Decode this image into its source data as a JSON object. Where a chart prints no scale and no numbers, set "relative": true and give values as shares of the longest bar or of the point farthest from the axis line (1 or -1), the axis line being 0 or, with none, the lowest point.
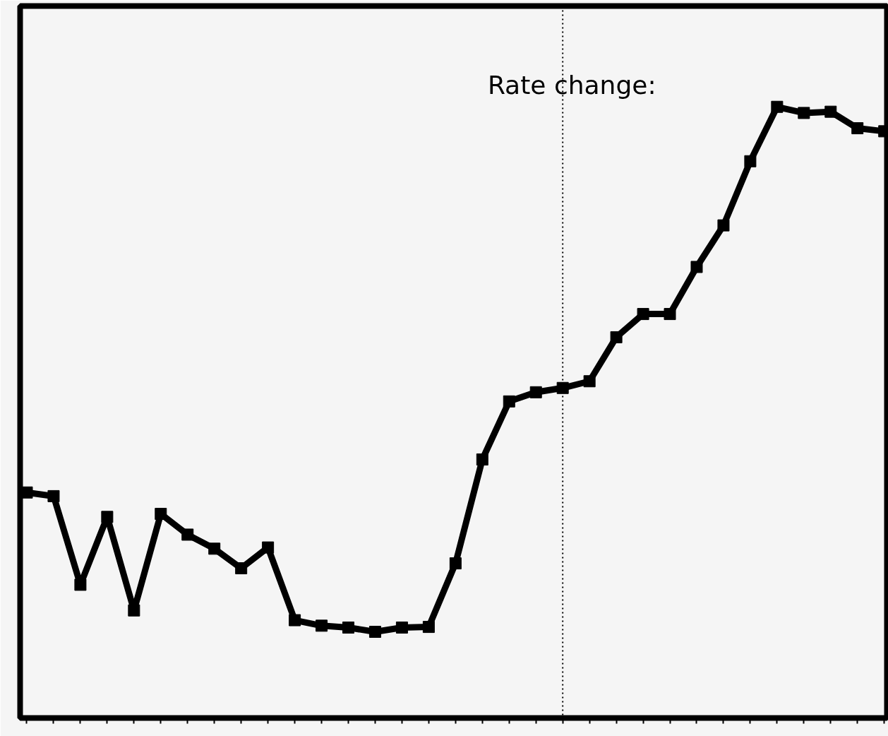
{
  "chart_data": {
    "type": "line",
    "relative": true,
    "categories": [
      null,
      null,
      null,
      null,
      null,
      null,
      null,
      null,
      null,
      null,
      null,
      null,
      null,
      null,
      null,
      null,
      null,
      null,
      null,
      null,
      null,
      null,
      null,
      null,
      null,
      null,
      null,
      null,
      null,
      null,
      null,
      null,
      null
    ],
    "series": [
      {
        "color": "#000000",
        "values": [
          0.369,
          0.363,
          0.218,
          0.329,
          0.176,
          0.334,
          0.3,
          0.277,
          0.245,
          0.279,
          0.16,
          0.151,
          0.148,
          0.141,
          0.148,
          0.149,
          0.253,
          0.423,
          0.518,
          0.533,
          0.54,
          0.551,
          0.623,
          0.661,
          0.661,
          0.738,
          0.806,
          0.911,
          1,
          0.99,
          0.992,
          0.965,
          0.96
        ]
      }
    ],
    "annotations": [
      "Rate change:"
    ],
    "marker": "square",
    "line_style": "solid",
    "grid": false
  }
}
